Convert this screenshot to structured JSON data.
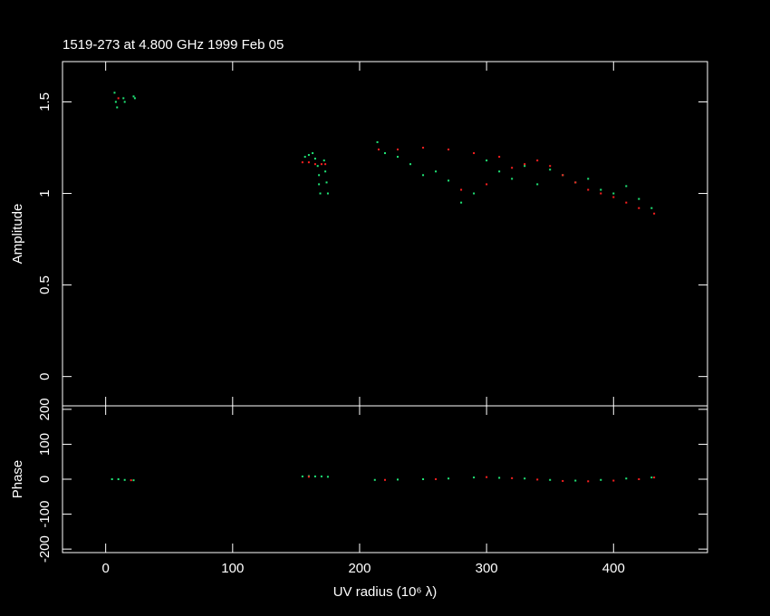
{
  "chart_data": [
    {
      "type": "scatter",
      "title": "1519-273 at 4.800 GHz 1999 Feb 05",
      "y_label": "Amplitude",
      "xlim": [
        -34,
        474
      ],
      "ylim": [
        -0.16,
        1.72
      ],
      "yticks": [
        0,
        0.5,
        1,
        1.5
      ],
      "series": [
        {
          "name": null,
          "color": "#20e878",
          "x": [
            7,
            8,
            9,
            14,
            15,
            22,
            23,
            157,
            160,
            163,
            165,
            167,
            168,
            168,
            169,
            172,
            173,
            174,
            175,
            214,
            220,
            230,
            240,
            250,
            260,
            270,
            280,
            290,
            300,
            310,
            320,
            330,
            340,
            350,
            360,
            370,
            380,
            390,
            400,
            410,
            420,
            430
          ],
          "values": [
            1.55,
            1.5,
            1.47,
            1.52,
            1.5,
            1.53,
            1.52,
            1.2,
            1.21,
            1.22,
            1.19,
            1.15,
            1.1,
            1.05,
            1.0,
            1.18,
            1.12,
            1.06,
            1.0,
            1.28,
            1.22,
            1.2,
            1.16,
            1.1,
            1.12,
            1.07,
            0.95,
            1.0,
            1.18,
            1.12,
            1.08,
            1.15,
            1.05,
            1.13,
            1.1,
            1.06,
            1.08,
            1.02,
            1.0,
            1.04,
            0.97,
            0.92
          ]
        },
        {
          "name": null,
          "color": "#ff2020",
          "x": [
            10,
            155,
            160,
            165,
            170,
            173,
            215,
            230,
            250,
            270,
            280,
            290,
            300,
            310,
            320,
            330,
            340,
            350,
            360,
            370,
            380,
            390,
            400,
            410,
            420,
            432
          ],
          "values": [
            1.52,
            1.17,
            1.17,
            1.16,
            1.16,
            1.16,
            1.24,
            1.24,
            1.25,
            1.24,
            1.02,
            1.22,
            1.05,
            1.2,
            1.14,
            1.16,
            1.18,
            1.15,
            1.1,
            1.06,
            1.02,
            1.0,
            0.98,
            0.95,
            0.92,
            0.89
          ]
        }
      ]
    },
    {
      "type": "scatter",
      "x_label": "UV radius  (10⁶ λ)",
      "y_label": "Phase",
      "xlim": [
        -34,
        474
      ],
      "xticks": [
        0,
        100,
        200,
        300,
        400
      ],
      "ylim": [
        -210,
        210
      ],
      "yticks": [
        -200,
        -100,
        0,
        100,
        200
      ],
      "series": [
        {
          "name": null,
          "color": "#20e878",
          "x": [
            5,
            10,
            15,
            22,
            155,
            160,
            165,
            170,
            175,
            212,
            230,
            250,
            270,
            290,
            310,
            330,
            350,
            370,
            390,
            410,
            430
          ],
          "values": [
            0,
            0,
            -2,
            -3,
            8,
            9,
            8,
            8,
            7,
            -2,
            -1,
            0,
            2,
            5,
            4,
            2,
            -2,
            -4,
            -2,
            2,
            5
          ]
        },
        {
          "name": null,
          "color": "#ff2020",
          "x": [
            20,
            160,
            220,
            260,
            300,
            320,
            340,
            360,
            380,
            400,
            420,
            432
          ],
          "values": [
            -3,
            7,
            -2,
            0,
            6,
            3,
            -1,
            -5,
            -6,
            -4,
            0,
            5
          ]
        }
      ]
    }
  ]
}
